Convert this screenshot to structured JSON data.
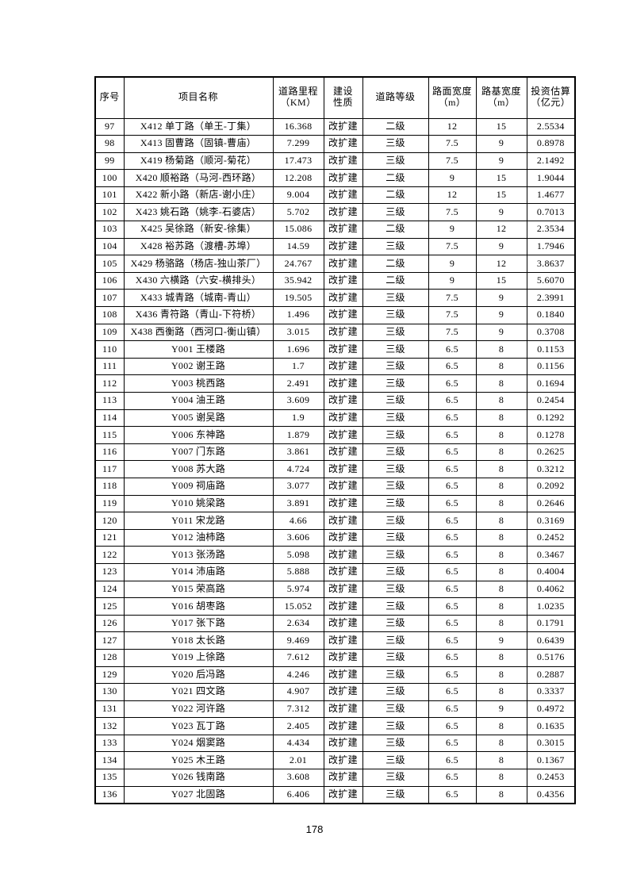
{
  "page_number": "178",
  "table": {
    "headers": [
      {
        "line1": "序号",
        "line2": ""
      },
      {
        "line1": "项目名称",
        "line2": ""
      },
      {
        "line1": "道路里程",
        "line2": "（KM）"
      },
      {
        "line1": "建设",
        "line2": "性质"
      },
      {
        "line1": "道路等级",
        "line2": ""
      },
      {
        "line1": "路面宽度",
        "line2": "（m）"
      },
      {
        "line1": "路基宽度",
        "line2": "（m）"
      },
      {
        "line1": "投资估算",
        "line2": "（亿元）"
      }
    ],
    "rows": [
      [
        "97",
        "X412 单丁路（单王-丁集）",
        "16.368",
        "改扩建",
        "二级",
        "12",
        "15",
        "2.5534"
      ],
      [
        "98",
        "X413 固曹路（固镇-曹庙）",
        "7.299",
        "改扩建",
        "三级",
        "7.5",
        "9",
        "0.8978"
      ],
      [
        "99",
        "X419 杨菊路（顺河-菊花）",
        "17.473",
        "改扩建",
        "三级",
        "7.5",
        "9",
        "2.1492"
      ],
      [
        "100",
        "X420 顺裕路（马河-西环路）",
        "12.208",
        "改扩建",
        "二级",
        "9",
        "15",
        "1.9044"
      ],
      [
        "101",
        "X422 新小路（新店-谢小庄）",
        "9.004",
        "改扩建",
        "二级",
        "12",
        "15",
        "1.4677"
      ],
      [
        "102",
        "X423 姚石路（姚李-石婆店）",
        "5.702",
        "改扩建",
        "三级",
        "7.5",
        "9",
        "0.7013"
      ],
      [
        "103",
        "X425 吴徐路（新安-徐集）",
        "15.086",
        "改扩建",
        "二级",
        "9",
        "12",
        "2.3534"
      ],
      [
        "104",
        "X428 裕苏路（渡槽-苏埠）",
        "14.59",
        "改扩建",
        "三级",
        "7.5",
        "9",
        "1.7946"
      ],
      [
        "105",
        "X429 杨骆路（杨店-独山茶厂）",
        "24.767",
        "改扩建",
        "二级",
        "9",
        "12",
        "3.8637"
      ],
      [
        "106",
        "X430 六横路（六安-横排头）",
        "35.942",
        "改扩建",
        "二级",
        "9",
        "15",
        "5.6070"
      ],
      [
        "107",
        "X433 城青路（城南-青山）",
        "19.505",
        "改扩建",
        "三级",
        "7.5",
        "9",
        "2.3991"
      ],
      [
        "108",
        "X436 青符路（青山-下符桥）",
        "1.496",
        "改扩建",
        "三级",
        "7.5",
        "9",
        "0.1840"
      ],
      [
        "109",
        "X438 西衡路（西河口-衡山镇）",
        "3.015",
        "改扩建",
        "三级",
        "7.5",
        "9",
        "0.3708"
      ],
      [
        "110",
        "Y001 王楼路",
        "1.696",
        "改扩建",
        "三级",
        "6.5",
        "8",
        "0.1153"
      ],
      [
        "111",
        "Y002 谢王路",
        "1.7",
        "改扩建",
        "三级",
        "6.5",
        "8",
        "0.1156"
      ],
      [
        "112",
        "Y003 桃西路",
        "2.491",
        "改扩建",
        "三级",
        "6.5",
        "8",
        "0.1694"
      ],
      [
        "113",
        "Y004 油王路",
        "3.609",
        "改扩建",
        "三级",
        "6.5",
        "8",
        "0.2454"
      ],
      [
        "114",
        "Y005 谢吴路",
        "1.9",
        "改扩建",
        "三级",
        "6.5",
        "8",
        "0.1292"
      ],
      [
        "115",
        "Y006 东神路",
        "1.879",
        "改扩建",
        "三级",
        "6.5",
        "8",
        "0.1278"
      ],
      [
        "116",
        "Y007 门东路",
        "3.861",
        "改扩建",
        "三级",
        "6.5",
        "8",
        "0.2625"
      ],
      [
        "117",
        "Y008 苏大路",
        "4.724",
        "改扩建",
        "三级",
        "6.5",
        "8",
        "0.3212"
      ],
      [
        "118",
        "Y009 祠庙路",
        "3.077",
        "改扩建",
        "三级",
        "6.5",
        "8",
        "0.2092"
      ],
      [
        "119",
        "Y010 姚梁路",
        "3.891",
        "改扩建",
        "三级",
        "6.5",
        "8",
        "0.2646"
      ],
      [
        "120",
        "Y011 宋龙路",
        "4.66",
        "改扩建",
        "三级",
        "6.5",
        "8",
        "0.3169"
      ],
      [
        "121",
        "Y012 油柿路",
        "3.606",
        "改扩建",
        "三级",
        "6.5",
        "8",
        "0.2452"
      ],
      [
        "122",
        "Y013 张汤路",
        "5.098",
        "改扩建",
        "三级",
        "6.5",
        "8",
        "0.3467"
      ],
      [
        "123",
        "Y014 沛庙路",
        "5.888",
        "改扩建",
        "三级",
        "6.5",
        "8",
        "0.4004"
      ],
      [
        "124",
        "Y015 荣高路",
        "5.974",
        "改扩建",
        "三级",
        "6.5",
        "8",
        "0.4062"
      ],
      [
        "125",
        "Y016 胡枣路",
        "15.052",
        "改扩建",
        "三级",
        "6.5",
        "8",
        "1.0235"
      ],
      [
        "126",
        "Y017 张下路",
        "2.634",
        "改扩建",
        "三级",
        "6.5",
        "8",
        "0.1791"
      ],
      [
        "127",
        "Y018 太长路",
        "9.469",
        "改扩建",
        "三级",
        "6.5",
        "9",
        "0.6439"
      ],
      [
        "128",
        "Y019 上徐路",
        "7.612",
        "改扩建",
        "三级",
        "6.5",
        "8",
        "0.5176"
      ],
      [
        "129",
        "Y020 后冯路",
        "4.246",
        "改扩建",
        "三级",
        "6.5",
        "8",
        "0.2887"
      ],
      [
        "130",
        "Y021 四文路",
        "4.907",
        "改扩建",
        "三级",
        "6.5",
        "8",
        "0.3337"
      ],
      [
        "131",
        "Y022 河许路",
        "7.312",
        "改扩建",
        "三级",
        "6.5",
        "9",
        "0.4972"
      ],
      [
        "132",
        "Y023 瓦丁路",
        "2.405",
        "改扩建",
        "三级",
        "6.5",
        "8",
        "0.1635"
      ],
      [
        "133",
        "Y024 烟窦路",
        "4.434",
        "改扩建",
        "三级",
        "6.5",
        "8",
        "0.3015"
      ],
      [
        "134",
        "Y025 木王路",
        "2.01",
        "改扩建",
        "三级",
        "6.5",
        "8",
        "0.1367"
      ],
      [
        "135",
        "Y026 钱南路",
        "3.608",
        "改扩建",
        "三级",
        "6.5",
        "8",
        "0.2453"
      ],
      [
        "136",
        "Y027 北固路",
        "6.406",
        "改扩建",
        "三级",
        "6.5",
        "8",
        "0.4356"
      ]
    ]
  }
}
